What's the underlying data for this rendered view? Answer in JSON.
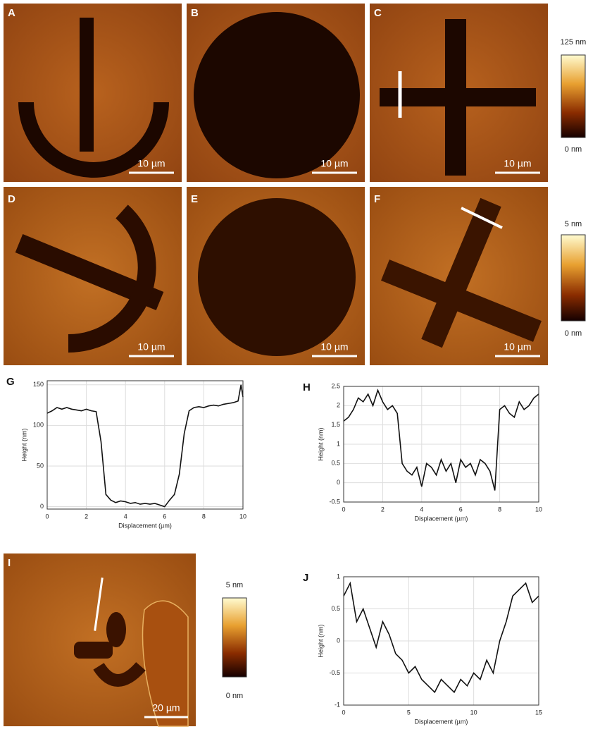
{
  "image_panels": [
    {
      "label": "A",
      "scale_bar": "10 µm"
    },
    {
      "label": "B",
      "scale_bar": "10 µm"
    },
    {
      "label": "C",
      "scale_bar": "10 µm"
    },
    {
      "label": "D",
      "scale_bar": "10 µm"
    },
    {
      "label": "E",
      "scale_bar": "10 µm"
    },
    {
      "label": "F",
      "scale_bar": "10 µm"
    },
    {
      "label": "I",
      "scale_bar": "20 µm"
    }
  ],
  "colorbars": [
    {
      "max_label": "125 nm",
      "min_label": "0 nm"
    },
    {
      "max_label": "5 nm",
      "min_label": "0 nm"
    },
    {
      "max_label": "5 nm",
      "min_label": "0 nm"
    }
  ],
  "chart_data": [
    {
      "type": "line",
      "title": "G",
      "x_label": "Displacement (µm)",
      "y_label": "Height (nm)",
      "color": "#111111",
      "grid": true,
      "x": [
        0,
        0.25,
        0.5,
        0.75,
        1,
        1.25,
        1.5,
        1.75,
        2,
        2.25,
        2.5,
        2.75,
        3,
        3.25,
        3.5,
        3.75,
        4,
        4.25,
        4.5,
        4.75,
        5,
        5.25,
        5.5,
        5.75,
        6,
        6.25,
        6.5,
        6.75,
        7,
        7.25,
        7.5,
        7.75,
        8,
        8.25,
        8.5,
        8.75,
        9,
        9.25,
        9.5,
        9.75,
        9.9,
        10
      ],
      "values": [
        115,
        118,
        122,
        120,
        122,
        120,
        119,
        118,
        120,
        118,
        117,
        80,
        15,
        8,
        5,
        7,
        6,
        4,
        5,
        3,
        4,
        3,
        4,
        2,
        0,
        8,
        15,
        40,
        90,
        118,
        122,
        123,
        122,
        124,
        125,
        124,
        126,
        127,
        128,
        130,
        150,
        135
      ],
      "xlim": [
        0,
        10
      ],
      "xticks": [
        0,
        2,
        4,
        6,
        8,
        10
      ],
      "ylim": [
        -3,
        155
      ],
      "yticks": [
        0,
        50,
        100,
        150
      ]
    },
    {
      "type": "line",
      "title": "H",
      "x_label": "Displacement (µm)",
      "y_label": "Height (nm)",
      "color": "#111111",
      "grid": true,
      "x": [
        0,
        0.25,
        0.5,
        0.75,
        1,
        1.25,
        1.5,
        1.75,
        2,
        2.25,
        2.5,
        2.75,
        3,
        3.25,
        3.5,
        3.75,
        4,
        4.25,
        4.5,
        4.75,
        5,
        5.25,
        5.5,
        5.75,
        6,
        6.25,
        6.5,
        6.75,
        7,
        7.25,
        7.5,
        7.75,
        8,
        8.25,
        8.5,
        8.75,
        9,
        9.25,
        9.5,
        9.75,
        10
      ],
      "values": [
        1.6,
        1.7,
        1.9,
        2.2,
        2.1,
        2.3,
        2.0,
        2.4,
        2.1,
        1.9,
        2.0,
        1.8,
        0.5,
        0.3,
        0.2,
        0.4,
        -0.1,
        0.5,
        0.4,
        0.2,
        0.6,
        0.3,
        0.5,
        0.0,
        0.6,
        0.4,
        0.5,
        0.2,
        0.6,
        0.5,
        0.3,
        -0.2,
        1.9,
        2.0,
        1.8,
        1.7,
        2.1,
        1.9,
        2.0,
        2.2,
        2.3
      ],
      "xlim": [
        0,
        10
      ],
      "xticks": [
        0,
        2,
        4,
        6,
        8,
        10
      ],
      "ylim": [
        -0.5,
        2.5
      ],
      "yticks": [
        -0.5,
        0,
        0.5,
        1,
        1.5,
        2,
        2.5
      ]
    },
    {
      "type": "line",
      "title": "J",
      "x_label": "Displacement (µm)",
      "y_label": "Height (nm)",
      "color": "#111111",
      "grid": true,
      "x": [
        0,
        0.5,
        1,
        1.5,
        2,
        2.5,
        3,
        3.5,
        4,
        4.5,
        5,
        5.5,
        6,
        6.5,
        7,
        7.5,
        8,
        8.5,
        9,
        9.5,
        10,
        10.5,
        11,
        11.5,
        12,
        12.5,
        13,
        13.5,
        14,
        14.5,
        15
      ],
      "values": [
        0.7,
        0.9,
        0.3,
        0.5,
        0.2,
        -0.1,
        0.3,
        0.1,
        -0.2,
        -0.3,
        -0.5,
        -0.4,
        -0.6,
        -0.7,
        -0.8,
        -0.6,
        -0.7,
        -0.8,
        -0.6,
        -0.7,
        -0.5,
        -0.6,
        -0.3,
        -0.5,
        0.0,
        0.3,
        0.7,
        0.8,
        0.9,
        0.6,
        0.7
      ],
      "xlim": [
        0,
        15
      ],
      "xticks": [
        0,
        5,
        10,
        15
      ],
      "ylim": [
        -1,
        1
      ],
      "yticks": [
        -1,
        -0.5,
        0,
        0.5,
        1
      ]
    }
  ]
}
